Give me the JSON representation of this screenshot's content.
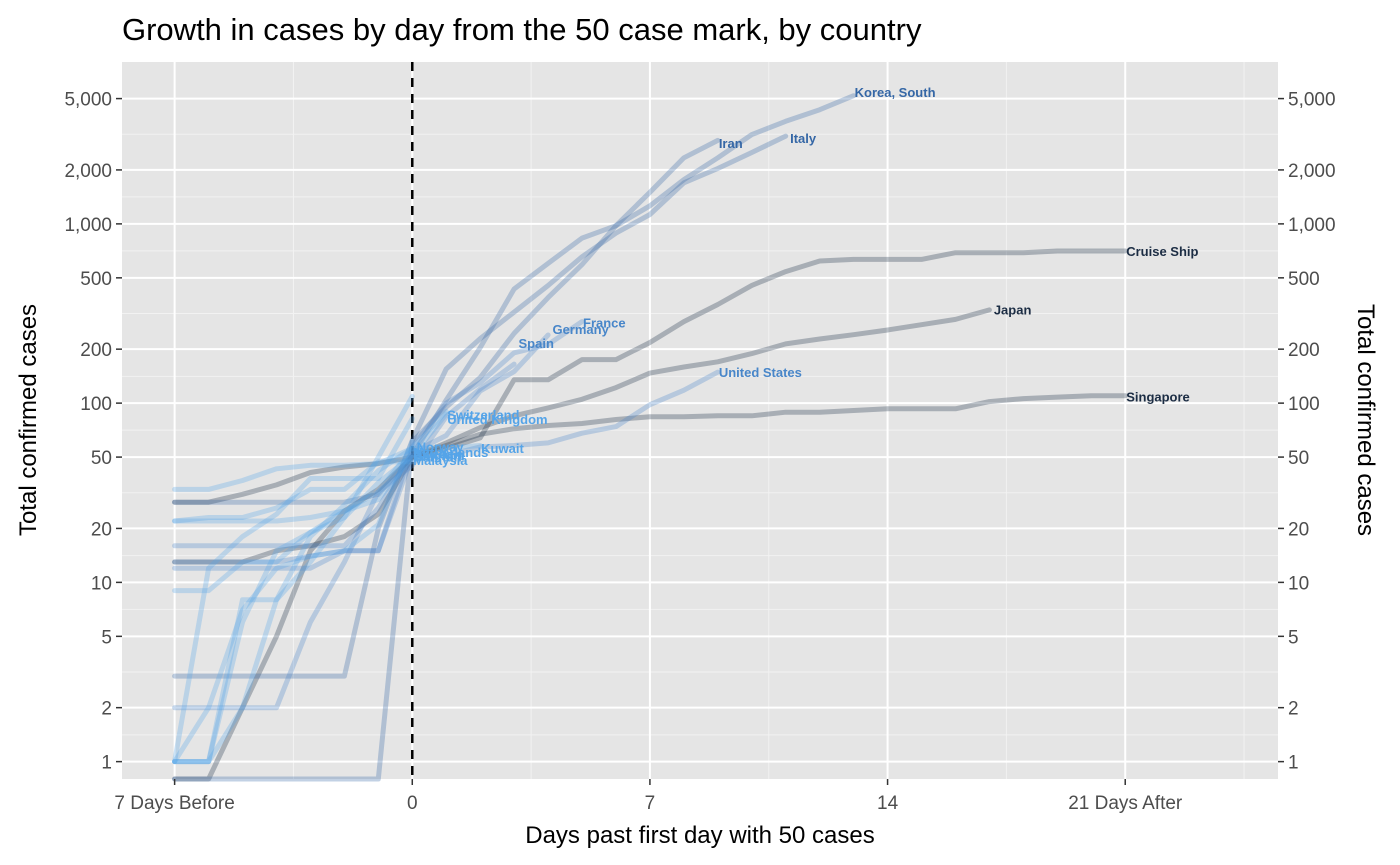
{
  "chart_data": {
    "type": "line",
    "title": "Growth in cases by day from the 50 case mark, by country",
    "xlabel": "Days past first day with 50 cases",
    "ylabel": "Total confirmed cases",
    "ylabel_right": "Total confirmed cases",
    "xlim": [
      -8.55,
      25.5
    ],
    "ylim": [
      0.8,
      8000
    ],
    "y_scale": "log",
    "grid": true,
    "x_ticks": [
      {
        "value": -7,
        "label": "7 Days Before"
      },
      {
        "value": 0,
        "label": "0"
      },
      {
        "value": 7,
        "label": "7"
      },
      {
        "value": 14,
        "label": "14"
      },
      {
        "value": 21,
        "label": "21 Days After"
      }
    ],
    "x_minor_ticks": [
      -3.5,
      3.5,
      10.5,
      17.5,
      24.5
    ],
    "y_ticks": [
      {
        "value": 1,
        "label": "1"
      },
      {
        "value": 2,
        "label": "2"
      },
      {
        "value": 5,
        "label": "5"
      },
      {
        "value": 10,
        "label": "10"
      },
      {
        "value": 20,
        "label": "20"
      },
      {
        "value": 50,
        "label": "50"
      },
      {
        "value": 100,
        "label": "100"
      },
      {
        "value": 200,
        "label": "200"
      },
      {
        "value": 500,
        "label": "500"
      },
      {
        "value": 1000,
        "label": "1,000"
      },
      {
        "value": 2000,
        "label": "2,000"
      },
      {
        "value": 5000,
        "label": "5,000"
      }
    ],
    "y_minor_ticks": [
      1.41,
      3.16,
      7.07,
      14.1,
      31.6,
      70.7,
      141,
      316,
      707,
      1414,
      3162
    ],
    "reference_line": {
      "x": 0,
      "style": "dashed"
    },
    "colors": {
      "early": "#1c2d44",
      "mid": "#3567a6",
      "late": "#55a4e8",
      "panel": "#e5e5e5"
    },
    "series": [
      {
        "name": "Cruise Ship",
        "color": "#1c2d44",
        "opacity": 0.3,
        "x": [
          -7,
          -6,
          -5,
          -4,
          -3,
          -2,
          -1,
          0,
          1,
          2,
          3,
          4,
          5,
          6,
          7,
          8,
          9,
          10,
          11,
          12,
          13,
          14,
          15,
          16,
          17,
          18,
          19,
          20,
          21
        ],
        "y": [
          28,
          28,
          31,
          35,
          41,
          44,
          46,
          50,
          56,
          64,
          135,
          135,
          175,
          175,
          218,
          285,
          355,
          454,
          542,
          621,
          634,
          634,
          634,
          691,
          691,
          691,
          706,
          706,
          706
        ]
      },
      {
        "name": "Singapore",
        "color": "#1c2d44",
        "opacity": 0.3,
        "x": [
          -7,
          -6,
          -5,
          -4,
          -3,
          -2,
          -1,
          0,
          1,
          2,
          3,
          4,
          5,
          6,
          7,
          8,
          9,
          10,
          11,
          12,
          13,
          14,
          15,
          16,
          17,
          18,
          19,
          20,
          21
        ],
        "y": [
          13,
          13,
          13,
          15,
          16,
          18,
          24,
          50,
          58,
          67,
          72,
          75,
          77,
          81,
          84,
          84,
          85,
          85,
          89,
          89,
          91,
          93,
          93,
          93,
          102,
          106,
          108,
          110,
          110
        ]
      },
      {
        "name": "Japan",
        "color": "#1c2d44",
        "opacity": 0.3,
        "x": [
          -7,
          -6,
          -5,
          -4,
          -3,
          -2,
          -1,
          0,
          1,
          2,
          3,
          4,
          5,
          6,
          7,
          8,
          9,
          10,
          11,
          12,
          13,
          14,
          15,
          16,
          17
        ],
        "y": [
          0.75,
          0.75,
          2,
          5,
          15,
          25,
          33,
          50,
          60,
          73,
          85,
          94,
          105,
          122,
          147,
          159,
          170,
          189,
          214,
          228,
          241,
          256,
          274,
          293,
          331
        ]
      },
      {
        "name": "Korea, South",
        "color": "#3567a6",
        "opacity": 0.3,
        "x": [
          -7,
          -6,
          -5,
          -4,
          -3,
          -2,
          -1,
          0,
          1,
          2,
          3,
          4,
          5,
          6,
          7,
          8,
          9,
          10,
          11,
          12,
          13
        ],
        "y": [
          28,
          28,
          28,
          28,
          28,
          28,
          31,
          51,
          104,
          204,
          433,
          602,
          833,
          977,
          1261,
          1766,
          2337,
          3150,
          3736,
          4335,
          5186
        ]
      },
      {
        "name": "Iran",
        "color": "#3567a6",
        "opacity": 0.3,
        "x": [
          -7,
          -6,
          -5,
          -4,
          -3,
          -2,
          -1,
          0,
          1,
          2,
          3,
          4,
          5,
          6,
          7,
          8,
          9
        ],
        "y": [
          0.75,
          0.75,
          0.75,
          0.75,
          0.75,
          0.75,
          0.75,
          61,
          95,
          139,
          245,
          388,
          593,
          978,
          1501,
          2336,
          2922
        ]
      },
      {
        "name": "Italy",
        "color": "#3567a6",
        "opacity": 0.3,
        "x": [
          -7,
          -6,
          -5,
          -4,
          -3,
          -2,
          -1,
          0,
          1,
          2,
          3,
          4,
          5,
          6,
          7,
          8,
          9,
          10,
          11
        ],
        "y": [
          3,
          3,
          3,
          3,
          3,
          3,
          20,
          62,
          155,
          229,
          322,
          453,
          655,
          888,
          1128,
          1694,
          2036,
          2502,
          3089
        ]
      },
      {
        "name": "France",
        "color": "#4886c9",
        "opacity": 0.3,
        "x": [
          -7,
          -6,
          -5,
          -4,
          -3,
          -2,
          -1,
          0,
          1,
          2,
          3,
          4,
          5
        ],
        "y": [
          12,
          12,
          12,
          12,
          12,
          15,
          15,
          57,
          100,
          130,
          191,
          212,
          285
        ]
      },
      {
        "name": "Germany",
        "color": "#4886c9",
        "opacity": 0.3,
        "x": [
          -7,
          -6,
          -5,
          -4,
          -3,
          -2,
          -1,
          0,
          1,
          2,
          3,
          4
        ],
        "y": [
          16,
          16,
          16,
          16,
          16,
          16,
          26,
          53,
          66,
          117,
          150,
          240
        ]
      },
      {
        "name": "Spain",
        "color": "#4886c9",
        "opacity": 0.3,
        "x": [
          -7,
          -6,
          -5,
          -4,
          -3,
          -2,
          -1,
          0,
          1,
          2,
          3
        ],
        "y": [
          2,
          2,
          2,
          2,
          6,
          13,
          32,
          45,
          84,
          120,
          165
        ]
      },
      {
        "name": "United States",
        "color": "#4886c9",
        "opacity": 0.3,
        "x": [
          -7,
          -6,
          -5,
          -4,
          -3,
          -2,
          -1,
          0,
          1,
          2,
          3,
          4,
          5,
          6,
          7,
          8,
          9
        ],
        "y": [
          13,
          13,
          13,
          13,
          14,
          15,
          15,
          51,
          51,
          57,
          58,
          60,
          68,
          74,
          98,
          118,
          149
        ]
      },
      {
        "name": "Switzerland",
        "color": "#55a4e8",
        "opacity": 0.3,
        "x": [
          -7,
          -6,
          -5,
          -4,
          -3,
          -2,
          -1,
          0,
          1
        ],
        "y": [
          1,
          1,
          8,
          8,
          18,
          27,
          42,
          56,
          90
        ]
      },
      {
        "name": "United Kingdom",
        "color": "#55a4e8",
        "opacity": 0.3,
        "x": [
          -7,
          -6,
          -5,
          -4,
          -3,
          -2,
          -1,
          0,
          1
        ],
        "y": [
          9,
          9,
          13,
          13,
          19,
          23,
          36,
          51,
          87
        ]
      },
      {
        "name": "Norway",
        "color": "#55a4e8",
        "opacity": 0.3,
        "x": [
          -7,
          -6,
          -5,
          -4,
          -3,
          -2,
          -1,
          0
        ],
        "y": [
          1,
          1,
          6,
          15,
          19,
          25,
          32,
          56
        ]
      },
      {
        "name": "Kuwait",
        "color": "#55a4e8",
        "opacity": 0.3,
        "x": [
          -7,
          -6,
          -5,
          -4,
          -3,
          -2,
          -1,
          0,
          1,
          2
        ],
        "y": [
          33,
          33,
          37,
          43,
          45,
          45,
          46,
          56,
          56,
          58
        ]
      },
      {
        "name": "Netherlands",
        "color": "#55a4e8",
        "opacity": 0.3,
        "x": [
          -7,
          -6,
          -5,
          -4,
          -3,
          -2,
          -1,
          0
        ],
        "y": [
          1,
          12,
          18,
          24,
          38,
          38,
          38,
          82
        ]
      },
      {
        "name": "Sweden",
        "color": "#55a4e8",
        "opacity": 0.3,
        "x": [
          -7,
          -6,
          -5,
          -4,
          -3,
          -2,
          -1,
          0
        ],
        "y": [
          1,
          2,
          7,
          12,
          14,
          15,
          21,
          61
        ]
      },
      {
        "name": "Belgium",
        "color": "#55a4e8",
        "opacity": 0.3,
        "x": [
          -7,
          -6,
          -5,
          -4,
          -3,
          -2,
          -1,
          0
        ],
        "y": [
          1,
          1,
          2,
          8,
          13,
          23,
          50,
          109
        ]
      },
      {
        "name": "Bahrain",
        "color": "#55a4e8",
        "opacity": 0.3,
        "x": [
          -7,
          -6,
          -5,
          -4,
          -3,
          -2,
          -1,
          0
        ],
        "y": [
          22,
          23,
          23,
          26,
          33,
          33,
          47,
          47
        ]
      },
      {
        "name": "Malaysia",
        "color": "#55a4e8",
        "opacity": 0.3,
        "x": [
          -7,
          -6,
          -5,
          -4,
          -3,
          -2,
          -1,
          0
        ],
        "y": [
          22,
          22,
          22,
          22,
          23,
          25,
          29,
          50
        ]
      }
    ],
    "labels": [
      {
        "text": "Korea, South",
        "x": 13,
        "y": 5400,
        "color": "#3567a6"
      },
      {
        "text": "Italy",
        "x": 11.1,
        "y": 3000,
        "color": "#3567a6"
      },
      {
        "text": "Iran",
        "x": 9,
        "y": 2800,
        "color": "#3567a6"
      },
      {
        "text": "Cruise Ship",
        "x": 21,
        "y": 700,
        "color": "#1c2d44"
      },
      {
        "text": "Japan",
        "x": 17.1,
        "y": 330,
        "color": "#1c2d44"
      },
      {
        "text": "France",
        "x": 5,
        "y": 280,
        "color": "#4886c9"
      },
      {
        "text": "Germany",
        "x": 4.1,
        "y": 258,
        "color": "#4886c9"
      },
      {
        "text": "Spain",
        "x": 3.1,
        "y": 215,
        "color": "#4886c9"
      },
      {
        "text": "United States",
        "x": 9,
        "y": 148,
        "color": "#4886c9"
      },
      {
        "text": "Singapore",
        "x": 21,
        "y": 108,
        "color": "#1c2d44"
      },
      {
        "text": "Switzerland",
        "x": 1,
        "y": 86,
        "color": "#55a4e8"
      },
      {
        "text": "United Kingdom",
        "x": 1,
        "y": 81,
        "color": "#55a4e8"
      },
      {
        "text": "Kuwait",
        "x": 2,
        "y": 56,
        "color": "#55a4e8"
      },
      {
        "text": "Norway",
        "x": 0.1,
        "y": 57,
        "color": "#55a4e8"
      },
      {
        "text": "Netherlands",
        "x": 0,
        "y": 53,
        "color": "#55a4e8"
      },
      {
        "text": "Sweden",
        "x": 0,
        "y": 52,
        "color": "#55a4e8"
      },
      {
        "text": "Belgium",
        "x": 0,
        "y": 51,
        "color": "#55a4e8"
      },
      {
        "text": "Bahrain",
        "x": 0,
        "y": 50,
        "color": "#55a4e8"
      },
      {
        "text": "Malaysia",
        "x": 0,
        "y": 48,
        "color": "#55a4e8"
      }
    ]
  }
}
